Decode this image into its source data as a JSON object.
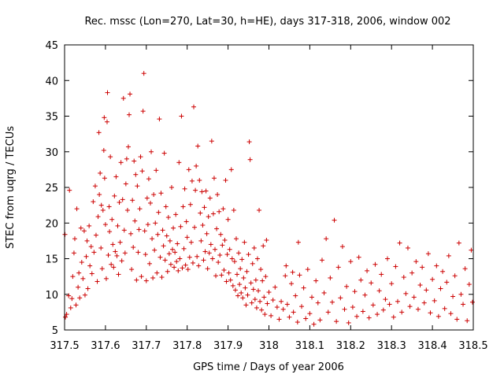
{
  "chart_data": {
    "type": "scatter",
    "title": "Rec. mssc (Lon=270, Lat=30, h=HE), days 317-318, 2006, window 002",
    "xlabel": "GPS time / Days of year 2006",
    "ylabel": "STEC from uqrg / TECUs",
    "xlim": [
      317.5,
      318.5
    ],
    "ylim": [
      5,
      45
    ],
    "xticks": [
      317.5,
      317.6,
      317.7,
      317.8,
      317.9,
      318.0,
      318.1,
      318.2,
      318.3,
      318.4,
      318.5
    ],
    "xtick_labels": [
      "317.5",
      "317.6",
      "317.7",
      "317.8",
      "317.9",
      "318",
      "318.1",
      "318.2",
      "318.3",
      "318.4",
      "318.5"
    ],
    "yticks": [
      5,
      10,
      15,
      20,
      25,
      30,
      35,
      40,
      45
    ],
    "ytick_labels": [
      "5",
      "10",
      "15",
      "20",
      "25",
      "30",
      "35",
      "40",
      "45"
    ],
    "grid": false,
    "marker": "+",
    "color": "#cc0000",
    "points": [
      [
        317.501,
        18.4
      ],
      [
        317.502,
        6.8
      ],
      [
        317.505,
        7.2
      ],
      [
        317.51,
        9.8
      ],
      [
        317.512,
        24.6
      ],
      [
        317.515,
        8.1
      ],
      [
        317.518,
        9.4
      ],
      [
        317.52,
        12.5
      ],
      [
        317.523,
        15.8
      ],
      [
        317.525,
        17.8
      ],
      [
        317.528,
        8.5
      ],
      [
        317.53,
        22.0
      ],
      [
        317.533,
        11.0
      ],
      [
        317.535,
        13.0
      ],
      [
        317.537,
        9.5
      ],
      [
        317.54,
        19.3
      ],
      [
        317.542,
        14.5
      ],
      [
        317.545,
        12.2
      ],
      [
        317.548,
        18.9
      ],
      [
        317.55,
        9.9
      ],
      [
        317.553,
        15.3
      ],
      [
        317.555,
        17.5
      ],
      [
        317.557,
        10.8
      ],
      [
        317.56,
        19.6
      ],
      [
        317.562,
        14.0
      ],
      [
        317.565,
        16.7
      ],
      [
        317.567,
        12.9
      ],
      [
        317.57,
        23.0
      ],
      [
        317.572,
        15.9
      ],
      [
        317.575,
        25.2
      ],
      [
        317.577,
        18.3
      ],
      [
        317.58,
        11.8
      ],
      [
        317.582,
        20.9
      ],
      [
        317.584,
        32.7
      ],
      [
        317.585,
        24.0
      ],
      [
        317.587,
        27.0
      ],
      [
        317.589,
        16.5
      ],
      [
        317.59,
        22.5
      ],
      [
        317.592,
        13.6
      ],
      [
        317.594,
        21.8
      ],
      [
        317.596,
        30.2
      ],
      [
        317.597,
        34.8
      ],
      [
        317.598,
        26.3
      ],
      [
        317.6,
        19.8
      ],
      [
        317.602,
        12.2
      ],
      [
        317.604,
        34.2
      ],
      [
        317.605,
        38.3
      ],
      [
        317.607,
        15.5
      ],
      [
        317.609,
        22.3
      ],
      [
        317.61,
        18.8
      ],
      [
        317.612,
        29.3
      ],
      [
        317.614,
        14.2
      ],
      [
        317.616,
        20.5
      ],
      [
        317.618,
        17.0
      ],
      [
        317.62,
        13.8
      ],
      [
        317.622,
        23.8
      ],
      [
        317.624,
        16.0
      ],
      [
        317.626,
        26.5
      ],
      [
        317.628,
        15.4
      ],
      [
        317.63,
        19.6
      ],
      [
        317.632,
        12.8
      ],
      [
        317.634,
        22.9
      ],
      [
        317.636,
        17.3
      ],
      [
        317.638,
        28.5
      ],
      [
        317.64,
        14.7
      ],
      [
        317.642,
        23.3
      ],
      [
        317.644,
        37.5
      ],
      [
        317.646,
        19.0
      ],
      [
        317.648,
        15.8
      ],
      [
        317.65,
        25.5
      ],
      [
        317.652,
        29.0
      ],
      [
        317.654,
        21.8
      ],
      [
        317.656,
        30.7
      ],
      [
        317.658,
        35.2
      ],
      [
        317.66,
        38.1
      ],
      [
        317.662,
        18.5
      ],
      [
        317.664,
        13.5
      ],
      [
        317.666,
        23.2
      ],
      [
        317.668,
        16.6
      ],
      [
        317.67,
        28.7
      ],
      [
        317.672,
        20.3
      ],
      [
        317.674,
        26.8
      ],
      [
        317.676,
        12.0
      ],
      [
        317.678,
        25.2
      ],
      [
        317.68,
        15.9
      ],
      [
        317.682,
        19.1
      ],
      [
        317.684,
        22.0
      ],
      [
        317.686,
        29.3
      ],
      [
        317.688,
        12.5
      ],
      [
        317.69,
        27.3
      ],
      [
        317.692,
        35.7
      ],
      [
        317.694,
        41.0
      ],
      [
        317.696,
        18.9
      ],
      [
        317.698,
        15.6
      ],
      [
        317.7,
        11.9
      ],
      [
        317.702,
        23.5
      ],
      [
        317.704,
        19.8
      ],
      [
        317.706,
        26.2
      ],
      [
        317.708,
        14.3
      ],
      [
        317.71,
        22.8
      ],
      [
        317.712,
        30.0
      ],
      [
        317.714,
        17.8
      ],
      [
        317.716,
        12.3
      ],
      [
        317.718,
        24.0
      ],
      [
        317.72,
        16.2
      ],
      [
        317.722,
        20.0
      ],
      [
        317.724,
        27.4
      ],
      [
        317.726,
        13.0
      ],
      [
        317.728,
        18.4
      ],
      [
        317.73,
        21.5
      ],
      [
        317.732,
        34.6
      ],
      [
        317.734,
        15.2
      ],
      [
        317.736,
        24.2
      ],
      [
        317.738,
        12.4
      ],
      [
        317.74,
        19.0
      ],
      [
        317.742,
        16.8
      ],
      [
        317.744,
        29.8
      ],
      [
        317.746,
        14.8
      ],
      [
        317.748,
        22.3
      ],
      [
        317.75,
        18.2
      ],
      [
        317.752,
        13.2
      ],
      [
        317.754,
        20.8
      ],
      [
        317.756,
        15.7
      ],
      [
        317.758,
        17.5
      ],
      [
        317.76,
        14.2
      ],
      [
        317.762,
        25.0
      ],
      [
        317.764,
        16.3
      ],
      [
        317.766,
        19.3
      ],
      [
        317.768,
        13.8
      ],
      [
        317.77,
        15.9
      ],
      [
        317.772,
        21.2
      ],
      [
        317.774,
        14.6
      ],
      [
        317.776,
        17.1
      ],
      [
        317.778,
        13.3
      ],
      [
        317.78,
        28.5
      ],
      [
        317.782,
        15.0
      ],
      [
        317.784,
        19.5
      ],
      [
        317.786,
        35.0
      ],
      [
        317.788,
        13.7
      ],
      [
        317.79,
        22.3
      ],
      [
        317.792,
        16.4
      ],
      [
        317.794,
        24.8
      ],
      [
        317.796,
        14.1
      ],
      [
        317.798,
        20.2
      ],
      [
        317.8,
        18.0
      ],
      [
        317.802,
        13.5
      ],
      [
        317.804,
        27.5
      ],
      [
        317.806,
        15.2
      ],
      [
        317.808,
        22.6
      ],
      [
        317.81,
        17.3
      ],
      [
        317.812,
        25.9
      ],
      [
        317.814,
        14.4
      ],
      [
        317.816,
        36.3
      ],
      [
        317.818,
        19.4
      ],
      [
        317.82,
        24.6
      ],
      [
        317.822,
        28.0
      ],
      [
        317.824,
        15.3
      ],
      [
        317.826,
        30.8
      ],
      [
        317.828,
        14.0
      ],
      [
        317.83,
        26.0
      ],
      [
        317.832,
        21.4
      ],
      [
        317.834,
        17.5
      ],
      [
        317.836,
        24.4
      ],
      [
        317.838,
        19.7
      ],
      [
        317.84,
        14.8
      ],
      [
        317.842,
        22.2
      ],
      [
        317.844,
        16.0
      ],
      [
        317.846,
        24.5
      ],
      [
        317.848,
        18.5
      ],
      [
        317.85,
        13.6
      ],
      [
        317.852,
        20.9
      ],
      [
        317.854,
        15.8
      ],
      [
        317.856,
        23.5
      ],
      [
        317.858,
        17.0
      ],
      [
        317.86,
        31.5
      ],
      [
        317.862,
        15.0
      ],
      [
        317.864,
        21.3
      ],
      [
        317.866,
        26.3
      ],
      [
        317.868,
        16.3
      ],
      [
        317.87,
        12.6
      ],
      [
        317.872,
        19.2
      ],
      [
        317.874,
        24.0
      ],
      [
        317.876,
        14.5
      ],
      [
        317.878,
        21.6
      ],
      [
        317.88,
        15.5
      ],
      [
        317.882,
        18.4
      ],
      [
        317.884,
        12.7
      ],
      [
        317.886,
        16.9
      ],
      [
        317.888,
        22.0
      ],
      [
        317.89,
        13.4
      ],
      [
        317.892,
        17.6
      ],
      [
        317.894,
        26.0
      ],
      [
        317.896,
        11.8
      ],
      [
        317.898,
        15.6
      ],
      [
        317.9,
        20.5
      ],
      [
        317.902,
        13.0
      ],
      [
        317.904,
        16.3
      ],
      [
        317.906,
        12.0
      ],
      [
        317.908,
        27.5
      ],
      [
        317.91,
        15.0
      ],
      [
        317.912,
        11.2
      ],
      [
        317.914,
        21.8
      ],
      [
        317.916,
        14.6
      ],
      [
        317.918,
        10.6
      ],
      [
        317.92,
        17.8
      ],
      [
        317.922,
        12.8
      ],
      [
        317.924,
        9.8
      ],
      [
        317.926,
        15.8
      ],
      [
        317.928,
        11.4
      ],
      [
        317.93,
        13.6
      ],
      [
        317.932,
        10.2
      ],
      [
        317.934,
        14.9
      ],
      [
        317.936,
        9.5
      ],
      [
        317.938,
        12.3
      ],
      [
        317.94,
        17.3
      ],
      [
        317.942,
        10.9
      ],
      [
        317.944,
        8.5
      ],
      [
        317.946,
        13.2
      ],
      [
        317.948,
        9.9
      ],
      [
        317.95,
        15.6
      ],
      [
        317.952,
        31.4
      ],
      [
        317.954,
        28.9
      ],
      [
        317.956,
        11.6
      ],
      [
        317.958,
        8.8
      ],
      [
        317.96,
        14.3
      ],
      [
        317.962,
        10.7
      ],
      [
        317.964,
        16.5
      ],
      [
        317.966,
        9.3
      ],
      [
        317.968,
        12.0
      ],
      [
        317.97,
        8.1
      ],
      [
        317.972,
        15.0
      ],
      [
        317.974,
        10.5
      ],
      [
        317.976,
        21.8
      ],
      [
        317.978,
        9.0
      ],
      [
        317.98,
        13.5
      ],
      [
        317.982,
        7.8
      ],
      [
        317.984,
        11.9
      ],
      [
        317.986,
        16.8
      ],
      [
        317.988,
        9.6
      ],
      [
        317.99,
        7.2
      ],
      [
        317.992,
        12.5
      ],
      [
        317.994,
        17.6
      ],
      [
        317.996,
        8.7
      ],
      [
        318.0,
        10.3
      ],
      [
        318.005,
        7.0
      ],
      [
        318.01,
        9.2
      ],
      [
        318.015,
        11.0
      ],
      [
        318.02,
        8.2
      ],
      [
        318.025,
        6.5
      ],
      [
        318.03,
        9.0
      ],
      [
        318.035,
        7.9
      ],
      [
        318.04,
        12.6
      ],
      [
        318.042,
        14.0
      ],
      [
        318.045,
        8.6
      ],
      [
        318.05,
        6.8
      ],
      [
        318.055,
        11.5
      ],
      [
        318.058,
        13.1
      ],
      [
        318.06,
        7.5
      ],
      [
        318.065,
        9.8
      ],
      [
        318.07,
        6.1
      ],
      [
        318.072,
        17.3
      ],
      [
        318.075,
        12.7
      ],
      [
        318.08,
        8.3
      ],
      [
        318.085,
        10.9
      ],
      [
        318.09,
        6.6
      ],
      [
        318.095,
        13.5
      ],
      [
        318.1,
        7.3
      ],
      [
        318.105,
        9.6
      ],
      [
        318.11,
        5.8
      ],
      [
        318.115,
        11.9
      ],
      [
        318.12,
        8.8
      ],
      [
        318.125,
        6.4
      ],
      [
        318.13,
        14.8
      ],
      [
        318.135,
        10.2
      ],
      [
        318.14,
        17.8
      ],
      [
        318.145,
        7.5
      ],
      [
        318.15,
        12.3
      ],
      [
        318.155,
        8.9
      ],
      [
        318.16,
        20.4
      ],
      [
        318.165,
        6.2
      ],
      [
        318.17,
        13.8
      ],
      [
        318.175,
        9.5
      ],
      [
        318.18,
        16.7
      ],
      [
        318.185,
        7.9
      ],
      [
        318.19,
        11.1
      ],
      [
        318.195,
        6.0
      ],
      [
        318.2,
        14.6
      ],
      [
        318.205,
        8.2
      ],
      [
        318.21,
        10.4
      ],
      [
        318.215,
        6.9
      ],
      [
        318.22,
        15.2
      ],
      [
        318.225,
        12.0
      ],
      [
        318.23,
        7.6
      ],
      [
        318.235,
        9.9
      ],
      [
        318.24,
        13.3
      ],
      [
        318.245,
        6.7
      ],
      [
        318.25,
        11.6
      ],
      [
        318.255,
        8.5
      ],
      [
        318.26,
        14.2
      ],
      [
        318.265,
        7.2
      ],
      [
        318.27,
        10.5
      ],
      [
        318.275,
        12.8
      ],
      [
        318.28,
        7.8
      ],
      [
        318.285,
        9.3
      ],
      [
        318.29,
        15.0
      ],
      [
        318.295,
        8.6
      ],
      [
        318.3,
        11.5
      ],
      [
        318.305,
        6.8
      ],
      [
        318.31,
        13.9
      ],
      [
        318.315,
        9.0
      ],
      [
        318.32,
        17.2
      ],
      [
        318.325,
        7.5
      ],
      [
        318.33,
        12.4
      ],
      [
        318.335,
        10.1
      ],
      [
        318.34,
        16.5
      ],
      [
        318.345,
        8.3
      ],
      [
        318.35,
        13.0
      ],
      [
        318.355,
        9.6
      ],
      [
        318.36,
        14.6
      ],
      [
        318.365,
        7.9
      ],
      [
        318.37,
        11.3
      ],
      [
        318.375,
        13.8
      ],
      [
        318.38,
        8.8
      ],
      [
        318.385,
        10.6
      ],
      [
        318.39,
        15.7
      ],
      [
        318.395,
        7.4
      ],
      [
        318.4,
        12.1
      ],
      [
        318.405,
        9.1
      ],
      [
        318.41,
        14.0
      ],
      [
        318.415,
        6.9
      ],
      [
        318.42,
        10.8
      ],
      [
        318.425,
        13.2
      ],
      [
        318.43,
        8.0
      ],
      [
        318.435,
        11.7
      ],
      [
        318.44,
        15.4
      ],
      [
        318.445,
        7.3
      ],
      [
        318.45,
        9.7
      ],
      [
        318.455,
        12.6
      ],
      [
        318.46,
        6.5
      ],
      [
        318.465,
        17.2
      ],
      [
        318.47,
        10.0
      ],
      [
        318.475,
        8.6
      ],
      [
        318.48,
        13.6
      ],
      [
        318.485,
        6.3
      ],
      [
        318.49,
        11.4
      ],
      [
        318.495,
        16.2
      ],
      [
        318.498,
        8.9
      ]
    ]
  }
}
